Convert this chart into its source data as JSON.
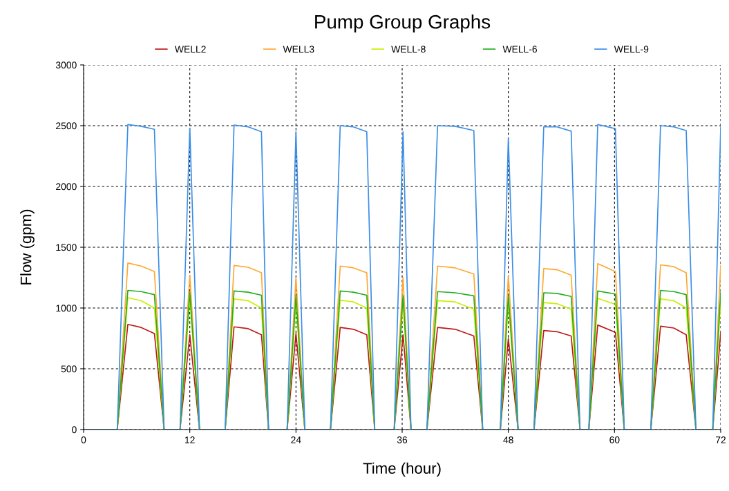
{
  "chart_data": {
    "type": "line",
    "title": "Pump Group Graphs",
    "xlabel": "Time (hour)",
    "ylabel": "Flow (gpm)",
    "x": [
      0,
      3.8,
      5.0,
      6.5,
      8.0,
      9.1,
      10.9,
      12.0,
      13.1,
      16.0,
      17.0,
      18.6,
      20.1,
      20.9,
      23.0,
      24.0,
      25.0,
      27.9,
      29.0,
      30.5,
      32.0,
      32.9,
      35.1,
      36.1,
      37.0,
      38.8,
      40.0,
      42.0,
      44.1,
      45.1,
      47.1,
      48.0,
      49.1,
      50.9,
      52.0,
      53.5,
      55.1,
      56.1,
      57.1,
      58.1,
      60.1,
      61.1,
      64.1,
      65.2,
      66.7,
      68.1,
      69.2,
      71.1,
      72
    ],
    "series": [
      {
        "name": "WELL2",
        "color": "#c01818",
        "values": [
          0,
          0,
          865,
          840,
          790,
          0,
          0,
          780,
          0,
          0,
          845,
          830,
          780,
          0,
          0,
          790,
          0,
          0,
          840,
          825,
          780,
          0,
          0,
          780,
          0,
          0,
          840,
          825,
          770,
          0,
          0,
          750,
          0,
          0,
          815,
          805,
          770,
          0,
          0,
          860,
          800,
          0,
          0,
          850,
          835,
          780,
          0,
          0,
          800
        ]
      },
      {
        "name": "WELL3",
        "color": "#ffa830",
        "values": [
          0,
          0,
          1370,
          1345,
          1300,
          0,
          0,
          1270,
          0,
          0,
          1350,
          1335,
          1290,
          0,
          0,
          1250,
          0,
          0,
          1345,
          1330,
          1290,
          0,
          0,
          1250,
          0,
          0,
          1345,
          1330,
          1280,
          0,
          0,
          1270,
          0,
          0,
          1325,
          1315,
          1270,
          0,
          0,
          1365,
          1300,
          0,
          0,
          1355,
          1340,
          1290,
          0,
          0,
          1350
        ]
      },
      {
        "name": "WELL-8",
        "color": "#c8f000",
        "values": [
          0,
          0,
          1085,
          1060,
          1000,
          0,
          0,
          1080,
          0,
          0,
          1075,
          1060,
          1000,
          0,
          0,
          1050,
          0,
          0,
          1065,
          1050,
          1000,
          0,
          0,
          1050,
          0,
          0,
          1060,
          1050,
          990,
          0,
          0,
          1050,
          0,
          0,
          1045,
          1035,
          990,
          0,
          0,
          1080,
          1030,
          0,
          0,
          1075,
          1060,
          1000,
          0,
          0,
          1060
        ]
      },
      {
        "name": "WELL-6",
        "color": "#22b022",
        "values": [
          0,
          0,
          1145,
          1135,
          1110,
          0,
          0,
          1130,
          0,
          0,
          1140,
          1130,
          1105,
          0,
          0,
          1100,
          0,
          0,
          1140,
          1130,
          1105,
          0,
          0,
          1100,
          0,
          0,
          1135,
          1125,
          1100,
          0,
          0,
          1100,
          0,
          0,
          1125,
          1120,
          1095,
          0,
          0,
          1140,
          1115,
          0,
          0,
          1145,
          1135,
          1110,
          0,
          0,
          1130
        ]
      },
      {
        "name": "WELL-9",
        "color": "#3a8ee8",
        "values": [
          0,
          0,
          2510,
          2495,
          2470,
          0,
          0,
          2480,
          0,
          0,
          2505,
          2490,
          2450,
          0,
          0,
          2450,
          0,
          0,
          2500,
          2490,
          2450,
          0,
          0,
          2450,
          0,
          0,
          2500,
          2495,
          2460,
          0,
          0,
          2400,
          0,
          0,
          2490,
          2490,
          2455,
          0,
          0,
          2510,
          2475,
          0,
          0,
          2500,
          2490,
          2460,
          0,
          0,
          2490
        ]
      }
    ],
    "xlim": [
      0,
      72
    ],
    "xticks": [
      0,
      12,
      24,
      36,
      48,
      60,
      72
    ],
    "ylim": [
      0,
      3000
    ],
    "yticks": [
      0,
      500,
      1000,
      1500,
      2000,
      2500,
      3000
    ],
    "grid": true,
    "legend": "top",
    "marker": "none",
    "line_style": "solid"
  }
}
